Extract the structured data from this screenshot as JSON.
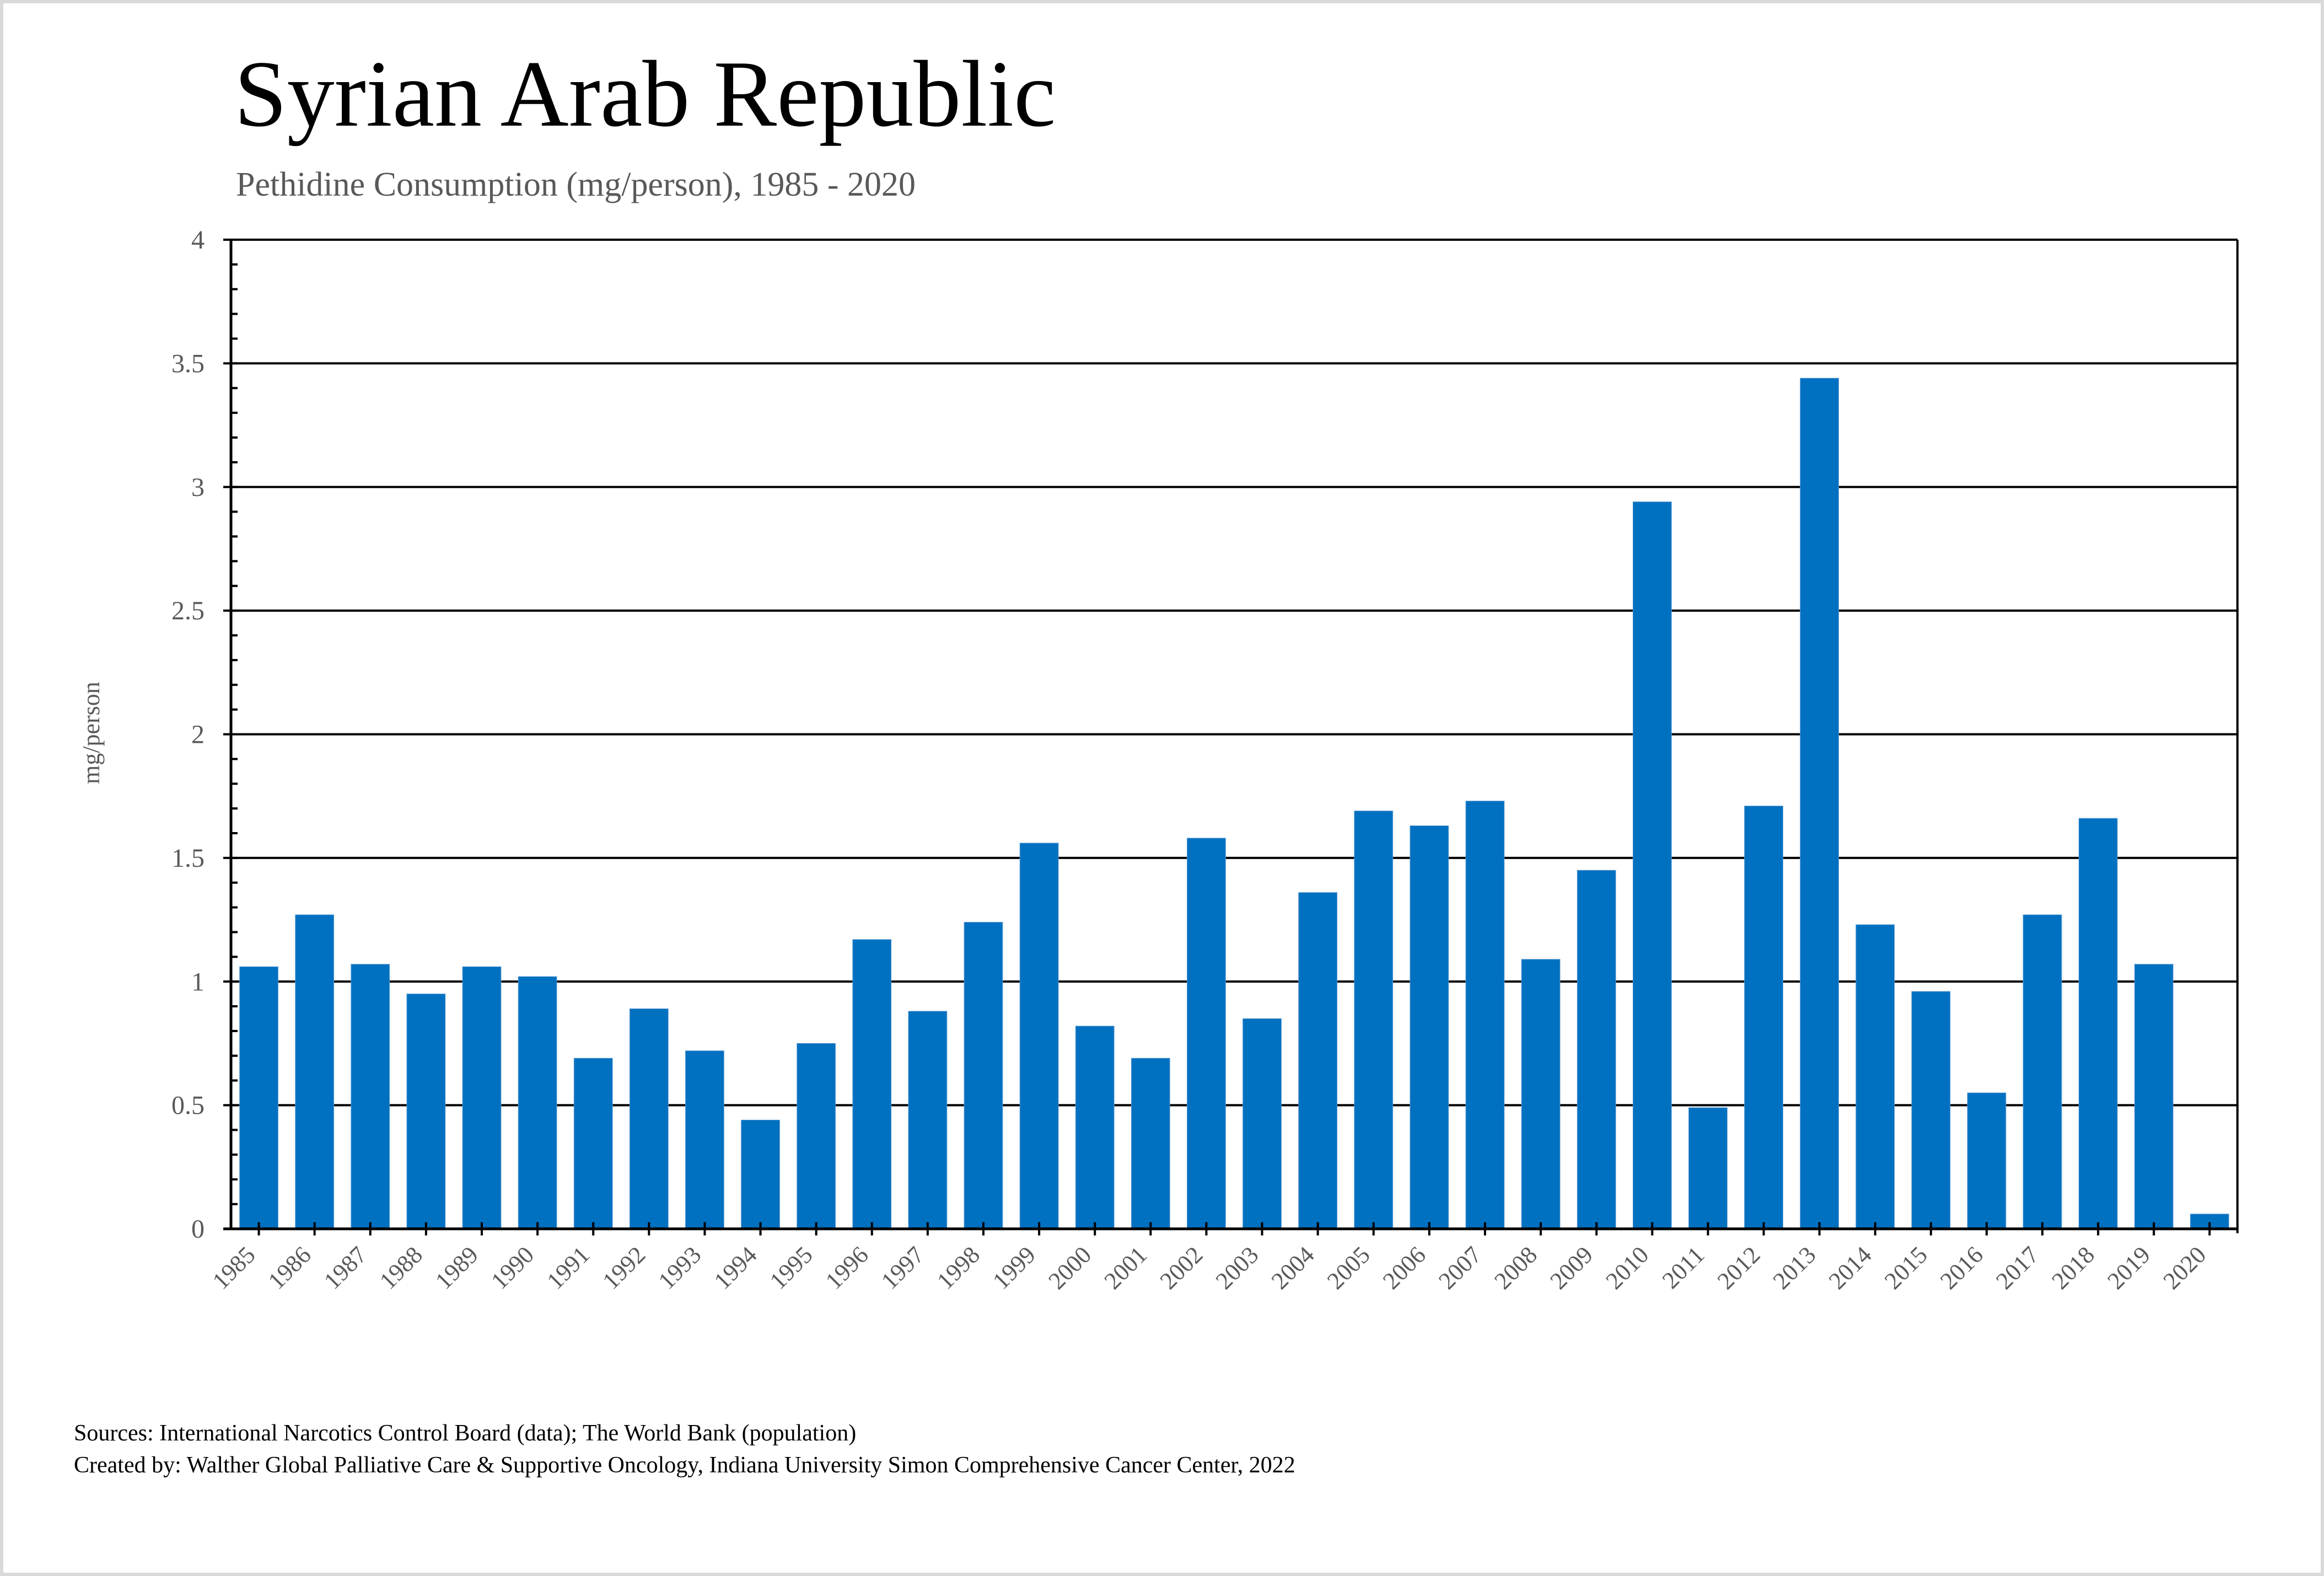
{
  "header": {
    "title": "Syrian Arab Republic",
    "subtitle": "Pethidine Consumption (mg/person), 1985 - 2020"
  },
  "footer": {
    "sources": "Sources: International Narcotics Control Board (data); The World Bank (population)",
    "created_by": "Created by: Walther Global Palliative Care & Supportive Oncology, Indiana University Simon Comprehensive Cancer Center, 2022"
  },
  "colors": {
    "bar": "#0070c0",
    "grid": "#000000",
    "label": "#595959",
    "frame": "#d9d9d9"
  },
  "chart_data": {
    "type": "bar",
    "title": "Syrian Arab Republic",
    "subtitle": "Pethidine Consumption (mg/person), 1985 - 2020",
    "xlabel": "",
    "ylabel": "mg/person",
    "ylim": [
      0,
      4
    ],
    "yticks": [
      "0",
      "0.5",
      "1",
      "1.5",
      "2",
      "2.5",
      "3",
      "3.5",
      "4"
    ],
    "ytick_values": [
      0,
      0.5,
      1,
      1.5,
      2,
      2.5,
      3,
      3.5,
      4
    ],
    "minor_tick_step": 0.1,
    "grid": true,
    "legend": "none",
    "categories": [
      "1985",
      "1986",
      "1987",
      "1988",
      "1989",
      "1990",
      "1991",
      "1992",
      "1993",
      "1994",
      "1995",
      "1996",
      "1997",
      "1998",
      "1999",
      "2000",
      "2001",
      "2002",
      "2003",
      "2004",
      "2005",
      "2006",
      "2007",
      "2008",
      "2009",
      "2010",
      "2011",
      "2012",
      "2013",
      "2014",
      "2015",
      "2016",
      "2017",
      "2018",
      "2019",
      "2020"
    ],
    "series": [
      {
        "name": "Pethidine (mg/person)",
        "values": [
          1.06,
          1.27,
          1.07,
          0.95,
          1.06,
          1.02,
          0.69,
          0.89,
          0.72,
          0.44,
          0.75,
          1.17,
          0.88,
          1.24,
          1.56,
          0.82,
          0.69,
          1.58,
          0.85,
          1.36,
          1.69,
          1.63,
          1.73,
          1.09,
          1.45,
          2.94,
          0.49,
          1.71,
          3.44,
          1.23,
          0.96,
          0.55,
          1.27,
          1.66,
          1.07,
          0.06
        ]
      }
    ]
  }
}
